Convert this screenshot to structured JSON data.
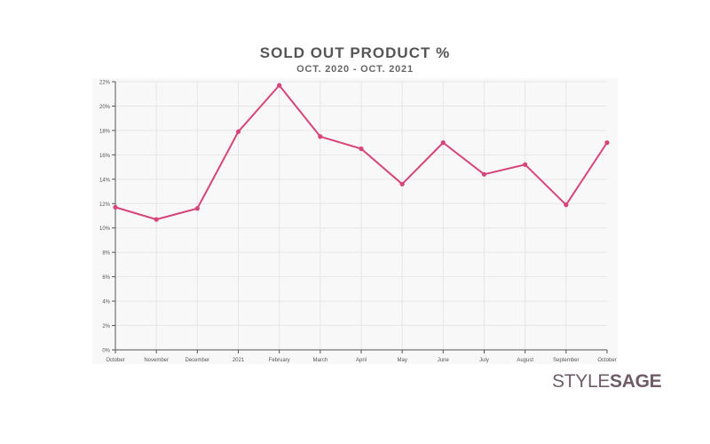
{
  "title": "SOLD OUT PRODUCT %",
  "subtitle": "OCT. 2020 - OCT. 2021",
  "logo": {
    "part1": "STYLE",
    "part2": "SAGE"
  },
  "colors": {
    "line": "#d6457a",
    "grid": "#e6e6e6",
    "plot_bg": "#f8f8f8",
    "axis": "#555555",
    "text": "#555555"
  },
  "chart_data": {
    "type": "line",
    "categories": [
      "October",
      "November",
      "December",
      "2021",
      "February",
      "March",
      "April",
      "May",
      "June",
      "July",
      "August",
      "September",
      "October"
    ],
    "series": [
      {
        "values": [
          11.7,
          10.7,
          11.6,
          17.9,
          21.7,
          17.5,
          16.5,
          13.6,
          17.0,
          14.4,
          15.2,
          11.9,
          17.0
        ]
      }
    ],
    "y_ticks": [
      "0%",
      "2%",
      "4%",
      "6%",
      "8%",
      "10%",
      "12%",
      "14%",
      "16%",
      "18%",
      "20%",
      "22%"
    ],
    "ylim": [
      0,
      22
    ],
    "grid": true
  }
}
